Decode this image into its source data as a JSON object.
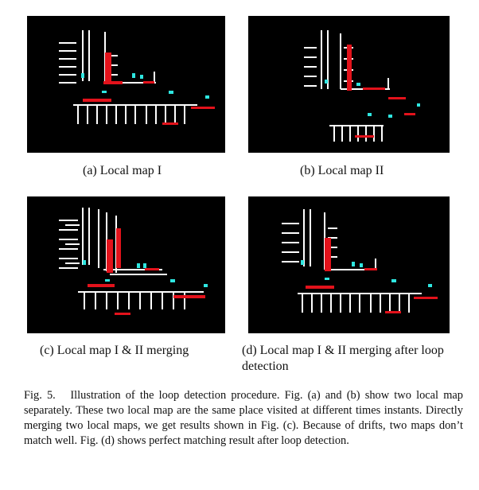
{
  "subfigures": [
    {
      "id": "a",
      "caption": "(a) Local map I"
    },
    {
      "id": "b",
      "caption": "(b) Local map II"
    },
    {
      "id": "c",
      "caption": "(c) Local map I & II merging"
    },
    {
      "id": "d",
      "caption": "(d) Local map I & II merging after loop detection"
    }
  ],
  "figure_caption": {
    "label": "Fig. 5.",
    "text": "Illustration of the loop detection procedure. Fig. (a) and (b) show two local map separately. These two local map are the same place visited at different times instants. Directly merging two local maps, we get results shown in Fig. (c). Because of drifts, two maps don’t match well. Fig. (d) shows perfect matching result after loop detection."
  },
  "colors": {
    "map_background": "#000000",
    "map_points": "#ffffff",
    "map_highlight": "#e3121b",
    "map_accent": "#2ee6e0"
  }
}
